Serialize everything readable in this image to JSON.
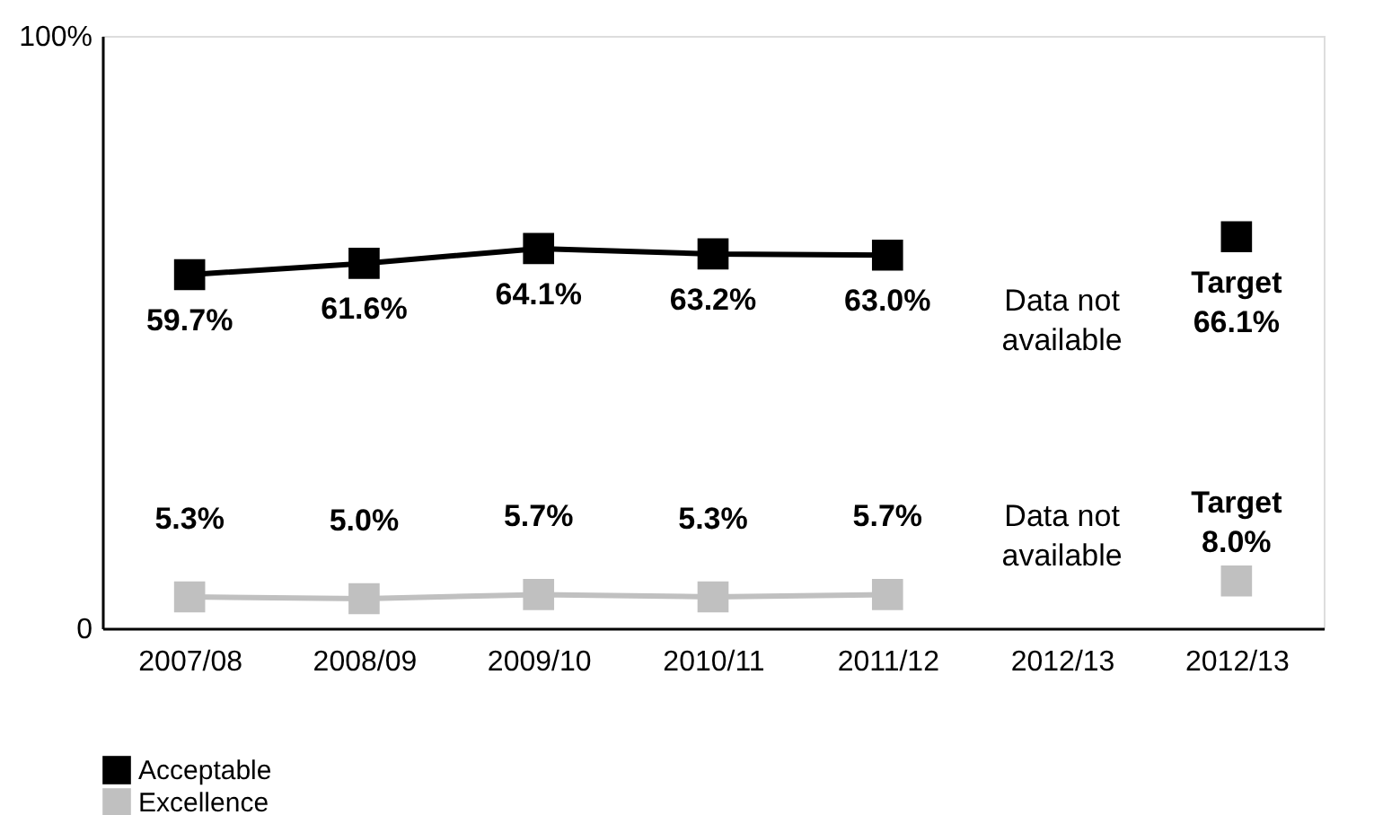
{
  "chart_data": {
    "type": "line",
    "categories": [
      "2007/08",
      "2008/09",
      "2009/10",
      "2010/11",
      "2011/12",
      "2012/13",
      "2012/13"
    ],
    "series": [
      {
        "name": "Acceptable",
        "color": "#000000",
        "values": [
          59.7,
          61.6,
          64.1,
          63.2,
          63.0,
          null,
          66.1
        ],
        "value_labels": [
          "59.7%",
          "61.6%",
          "64.1%",
          "63.2%",
          "63.0%",
          "Data not\navailable",
          "Target\n66.1%"
        ]
      },
      {
        "name": "Excellence",
        "color": "#c0c0c0",
        "values": [
          5.3,
          5.0,
          5.7,
          5.3,
          5.7,
          null,
          8.0
        ],
        "value_labels": [
          "5.3%",
          "5.0%",
          "5.7%",
          "5.3%",
          "5.7%",
          "Data not\navailable",
          "Target\n8.0%"
        ]
      }
    ],
    "ylim": [
      0,
      100
    ],
    "yticks": [
      {
        "value": 0,
        "label": "0"
      },
      {
        "value": 100,
        "label": "100%"
      }
    ],
    "grid": false,
    "legend": "bottom",
    "marker": "square",
    "line_style": "solid"
  }
}
